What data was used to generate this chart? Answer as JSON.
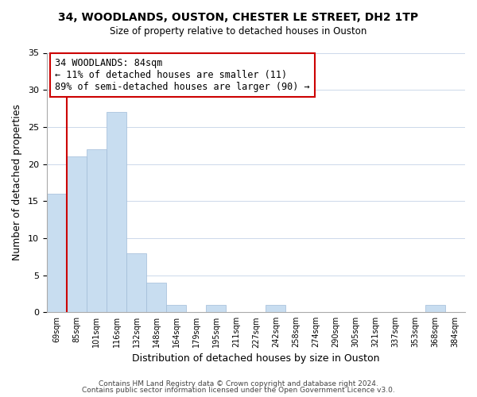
{
  "title1": "34, WOODLANDS, OUSTON, CHESTER LE STREET, DH2 1TP",
  "title2": "Size of property relative to detached houses in Ouston",
  "xlabel": "Distribution of detached houses by size in Ouston",
  "ylabel": "Number of detached properties",
  "categories": [
    "69sqm",
    "85sqm",
    "101sqm",
    "116sqm",
    "132sqm",
    "148sqm",
    "164sqm",
    "179sqm",
    "195sqm",
    "211sqm",
    "227sqm",
    "242sqm",
    "258sqm",
    "274sqm",
    "290sqm",
    "305sqm",
    "321sqm",
    "337sqm",
    "353sqm",
    "368sqm",
    "384sqm"
  ],
  "values": [
    16,
    21,
    22,
    27,
    8,
    4,
    1,
    0,
    1,
    0,
    0,
    1,
    0,
    0,
    0,
    0,
    0,
    0,
    0,
    1,
    0
  ],
  "bar_color": "#c8ddf0",
  "bar_edge_color": "#a0bcd8",
  "highlight_line_color": "#cc0000",
  "annotation_line1": "34 WOODLANDS: 84sqm",
  "annotation_line2": "← 11% of detached houses are smaller (11)",
  "annotation_line3": "89% of semi-detached houses are larger (90) →",
  "annotation_box_color": "#ffffff",
  "annotation_box_edge": "#cc0000",
  "ylim": [
    0,
    35
  ],
  "yticks": [
    0,
    5,
    10,
    15,
    20,
    25,
    30,
    35
  ],
  "footer1": "Contains HM Land Registry data © Crown copyright and database right 2024.",
  "footer2": "Contains public sector information licensed under the Open Government Licence v3.0.",
  "bg_color": "#ffffff",
  "grid_color": "#ccd8ea"
}
